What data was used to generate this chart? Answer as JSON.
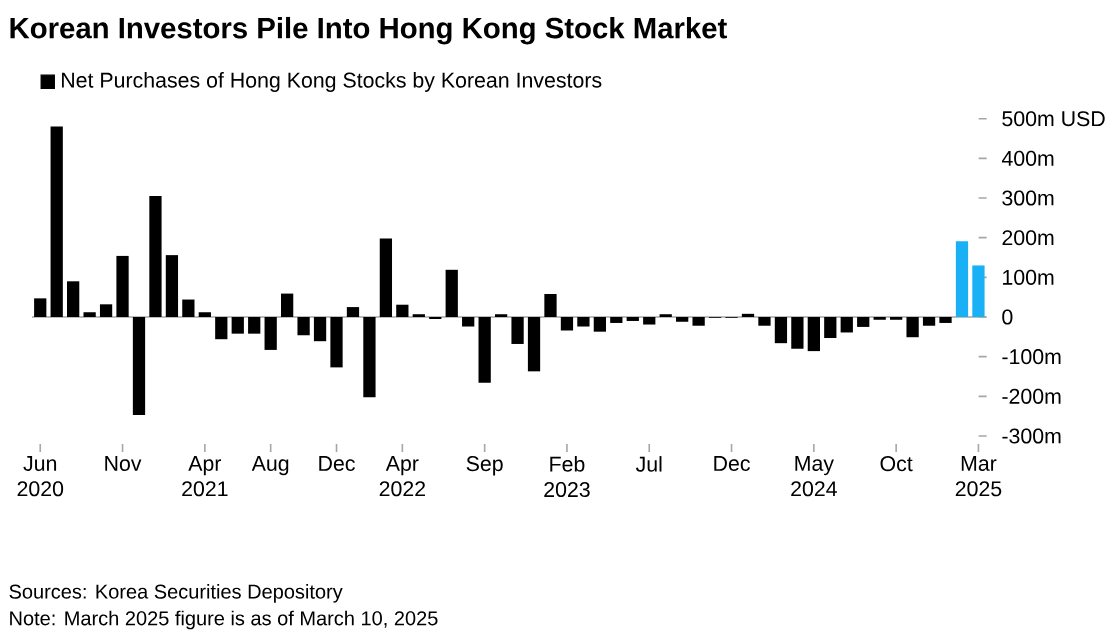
{
  "chart_data": {
    "type": "bar",
    "title": "Korean Investors Pile Into Hong Kong Stock Market",
    "categories": [
      "Jun 2020",
      null,
      null,
      null,
      null,
      "Nov",
      null,
      null,
      null,
      null,
      "Apr 2021",
      null,
      null,
      null,
      "Aug",
      null,
      null,
      null,
      "Dec",
      null,
      null,
      null,
      "Apr 2022",
      null,
      null,
      null,
      null,
      "Sep",
      null,
      null,
      null,
      null,
      "Feb 2023",
      null,
      null,
      null,
      null,
      "Jul",
      null,
      null,
      null,
      null,
      "Dec",
      null,
      null,
      null,
      null,
      "May 2024",
      null,
      null,
      null,
      null,
      "Oct",
      null,
      null,
      null,
      null,
      "Mar 2025"
    ],
    "series": [
      {
        "name": "Net Purchases of Hong Kong Stocks by Korean Investors",
        "color": "#000000",
        "values": [
          47,
          480,
          90,
          12,
          32,
          154,
          -247,
          305,
          156,
          44,
          12,
          -56,
          -42,
          -42,
          -83,
          59,
          -46,
          -61,
          -127,
          25,
          -202,
          198,
          31,
          7,
          -5,
          119,
          -24,
          -166,
          7,
          -68,
          -137,
          58,
          -34,
          -24,
          -37,
          -15,
          -10,
          -19,
          7,
          -12,
          -22,
          -2,
          -2,
          8,
          -22,
          -66,
          -80,
          -86,
          -53,
          -39,
          -25,
          -7,
          -7,
          -51,
          -22,
          -15,
          191,
          130
        ],
        "colors": [
          "#000000",
          "#000000",
          "#000000",
          "#000000",
          "#000000",
          "#000000",
          "#000000",
          "#000000",
          "#000000",
          "#000000",
          "#000000",
          "#000000",
          "#000000",
          "#000000",
          "#000000",
          "#000000",
          "#000000",
          "#000000",
          "#000000",
          "#000000",
          "#000000",
          "#000000",
          "#000000",
          "#000000",
          "#000000",
          "#000000",
          "#000000",
          "#000000",
          "#000000",
          "#000000",
          "#000000",
          "#000000",
          "#000000",
          "#000000",
          "#000000",
          "#000000",
          "#000000",
          "#000000",
          "#000000",
          "#000000",
          "#000000",
          "#000000",
          "#000000",
          "#000000",
          "#000000",
          "#000000",
          "#000000",
          "#000000",
          "#000000",
          "#000000",
          "#000000",
          "#000000",
          "#000000",
          "#000000",
          "#000000",
          "#000000",
          "#1ab0f5",
          "#1ab0f5"
        ]
      }
    ],
    "ylim": [
      -300,
      500
    ],
    "yticks": [
      {
        "value": 500,
        "label": "500m USD"
      },
      {
        "value": 400,
        "label": "400m"
      },
      {
        "value": 300,
        "label": "300m"
      },
      {
        "value": 200,
        "label": "200m"
      },
      {
        "value": 100,
        "label": "100m"
      },
      0,
      {
        "value": -100,
        "label": "-100m"
      },
      {
        "value": -200,
        "label": "-200m"
      },
      {
        "value": -300,
        "label": "-300m"
      }
    ],
    "legend": "top left",
    "annotations": [
      "Sources: Korea Securities Depository",
      "Note: March 2025 figure is as of March 10, 2025"
    ]
  }
}
